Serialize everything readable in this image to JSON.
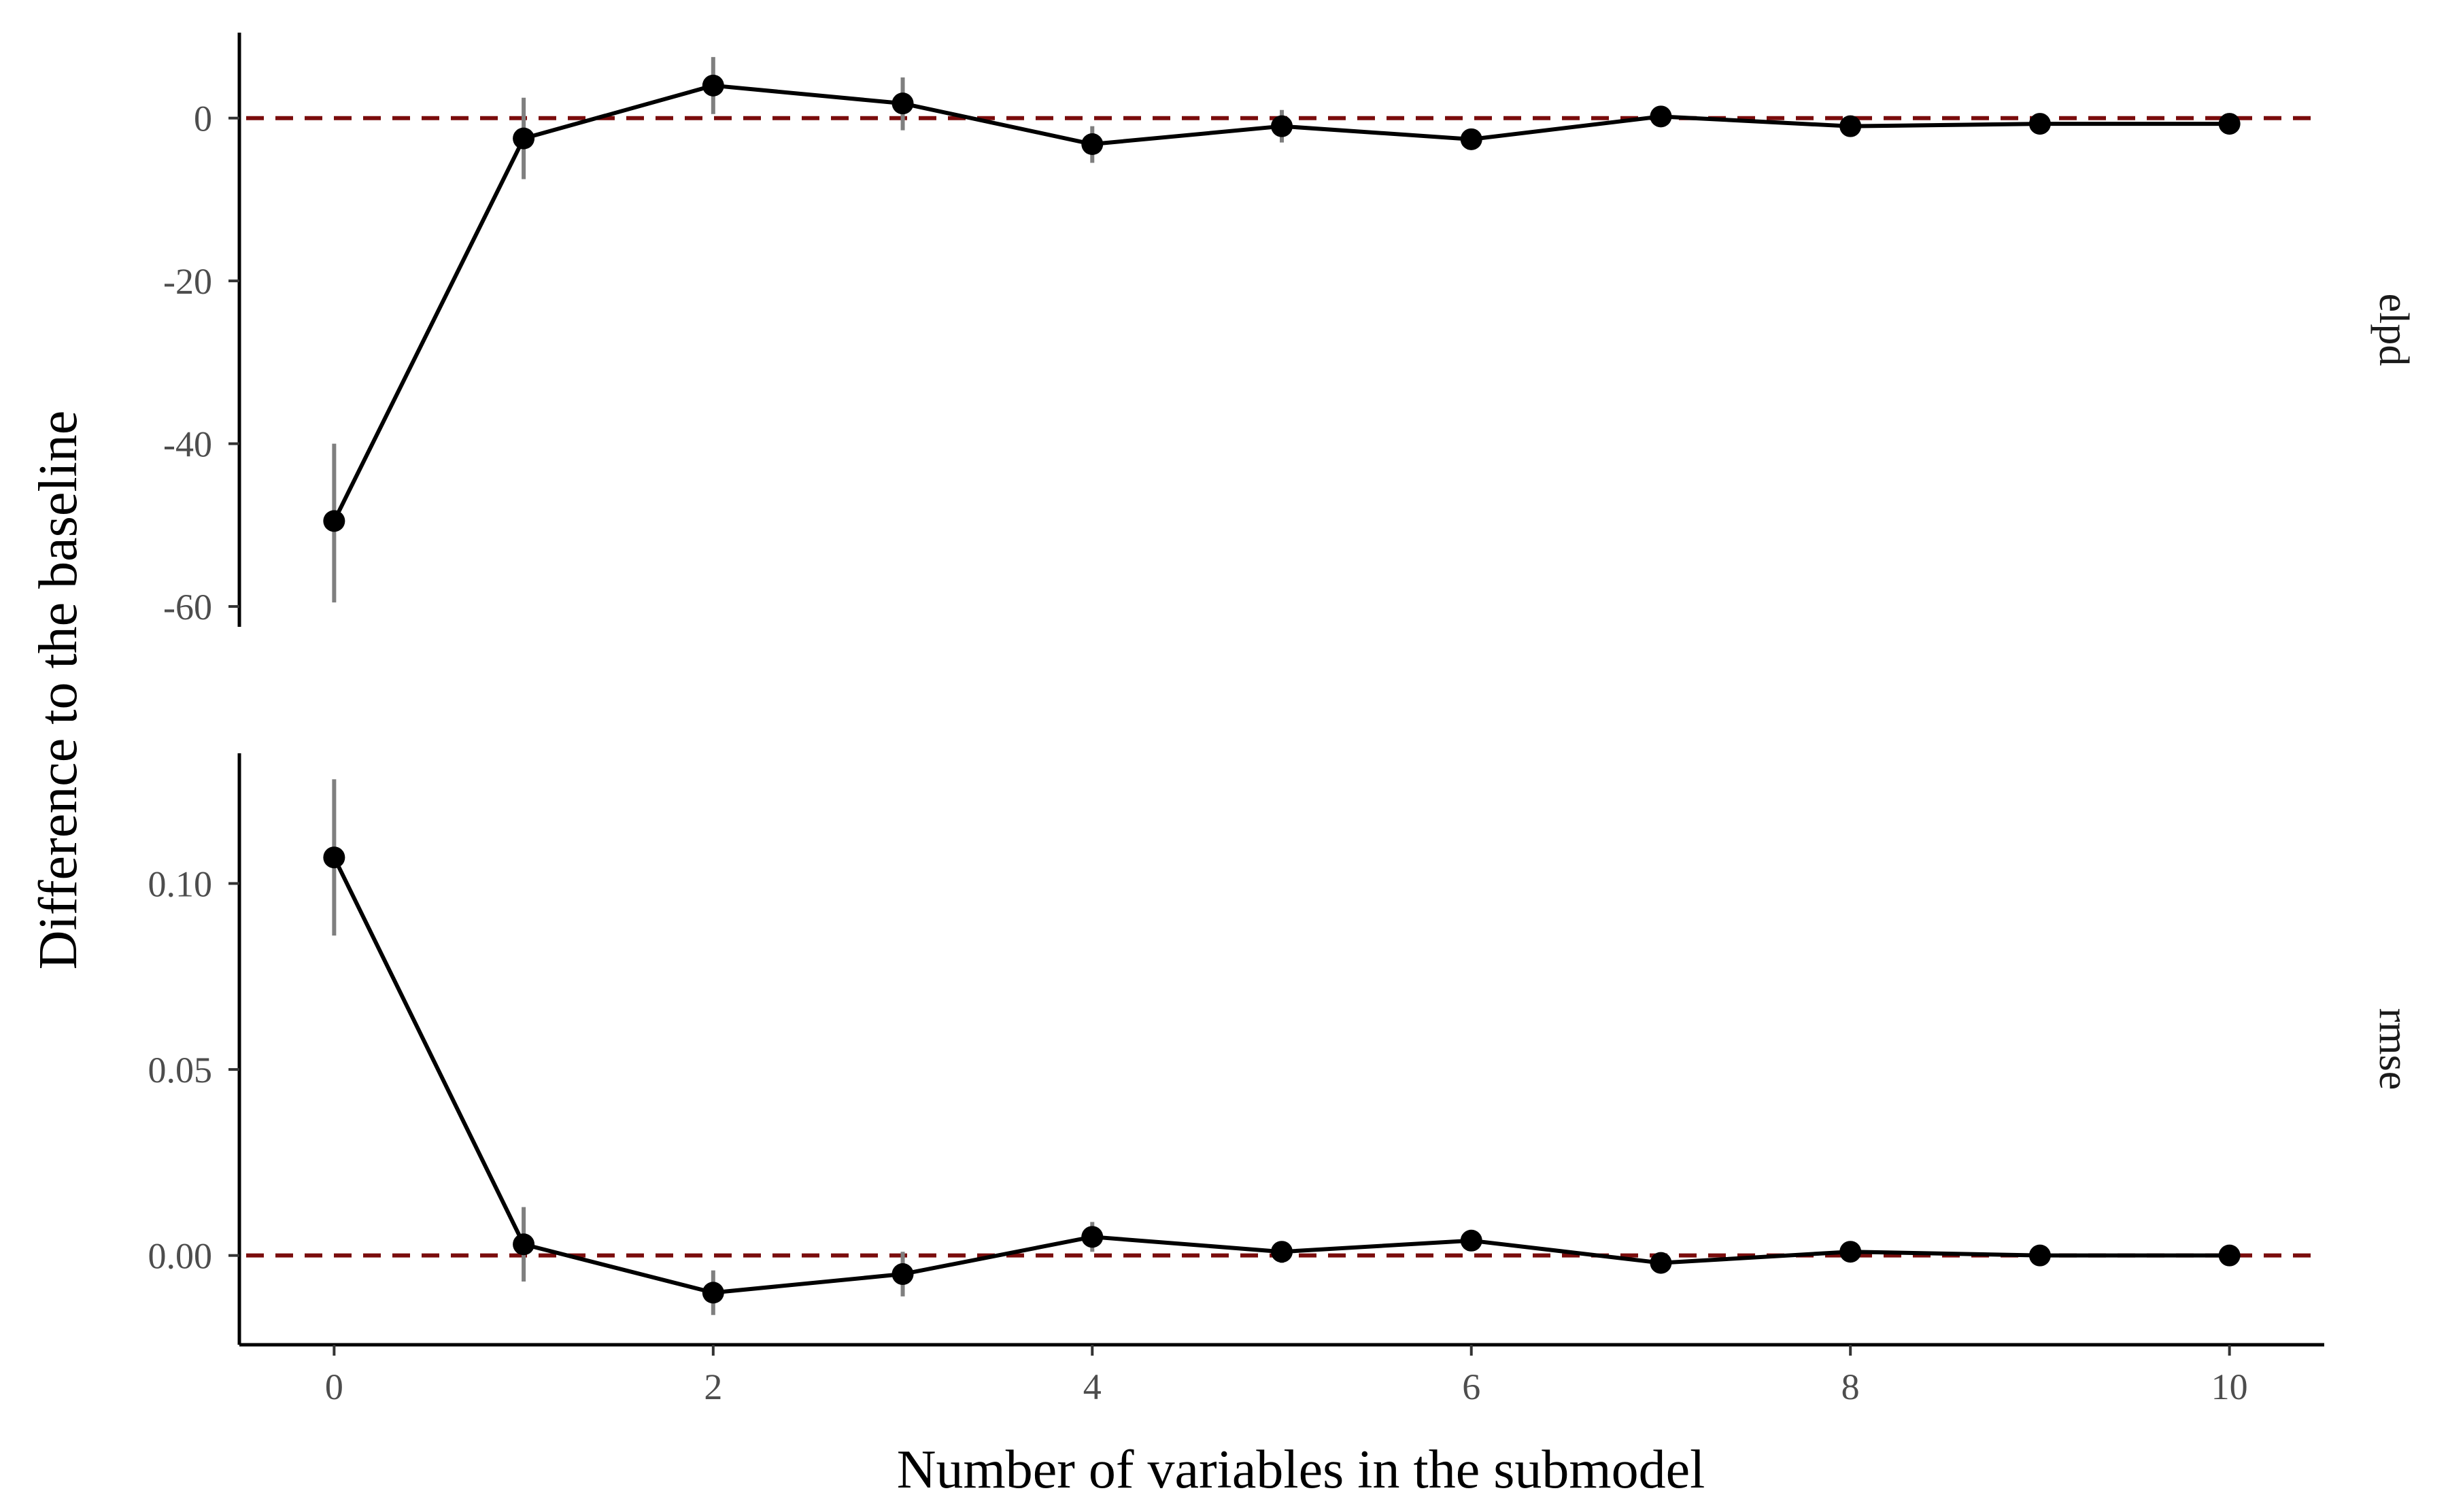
{
  "chart_data": {
    "type": "line",
    "xlabel": "Number of variables in the submodel",
    "ylabel": "Difference to the baseline",
    "x": [
      0,
      1,
      2,
      3,
      4,
      5,
      6,
      7,
      8,
      9,
      10
    ],
    "xlim": [
      -0.5,
      10.5
    ],
    "x_ticks": [
      "0",
      "2",
      "4",
      "6",
      "8",
      "10"
    ],
    "grid": false,
    "colors": {
      "line": "#000000",
      "points": "#000000",
      "error_bars": "#7f7f7f",
      "reference_line": "#7a0c0c"
    },
    "panels": [
      {
        "strip_label": "elpd",
        "ylim": [
          -62.5,
          10.5
        ],
        "y_ticks": [
          "0",
          "-20",
          "-40",
          "-60"
        ],
        "reference_value": 0,
        "values": [
          -49.5,
          -2.5,
          4.0,
          1.8,
          -3.2,
          -1.0,
          -2.6,
          0.2,
          -1.0,
          -0.7,
          -0.7
        ],
        "lower": [
          -59.5,
          -7.5,
          0.5,
          -1.5,
          -5.5,
          -3.0,
          -3.5,
          -0.5,
          -2.0,
          -1.5,
          -1.5
        ],
        "upper": [
          -40.0,
          2.5,
          7.5,
          5.0,
          -1.0,
          1.0,
          -1.5,
          0.8,
          0.0,
          0.0,
          0.0
        ]
      },
      {
        "strip_label": "rmse",
        "ylim": [
          -0.024,
          0.135
        ],
        "y_ticks": [
          "0.00",
          "0.05",
          "0.10"
        ],
        "reference_value": 0,
        "values": [
          0.107,
          0.003,
          -0.01,
          -0.005,
          0.005,
          0.001,
          0.004,
          -0.002,
          0.001,
          0.0,
          0.0
        ],
        "lower": [
          0.086,
          -0.007,
          -0.016,
          -0.011,
          0.001,
          -0.002,
          0.002,
          -0.003,
          0.0,
          -0.001,
          -0.001
        ],
        "upper": [
          0.128,
          0.013,
          -0.004,
          0.001,
          0.009,
          0.003,
          0.006,
          -0.001,
          0.002,
          0.001,
          0.001
        ]
      }
    ]
  }
}
